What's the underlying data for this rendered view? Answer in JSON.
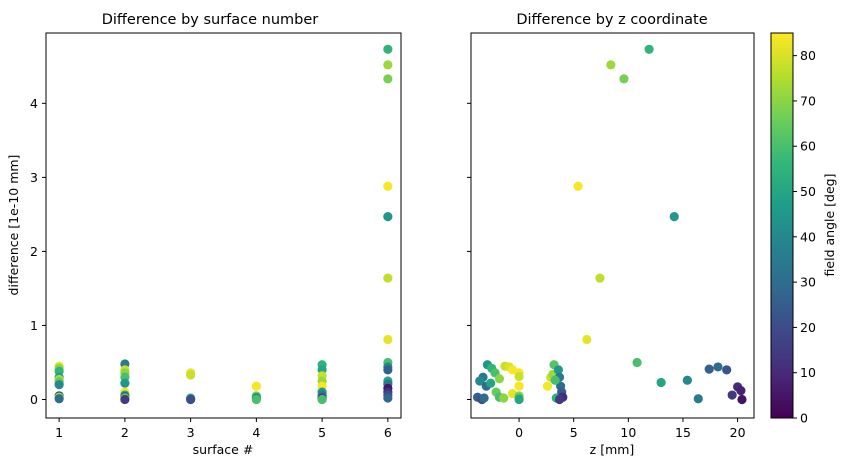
{
  "colors": {
    "viridis_stops": [
      "#440154",
      "#482878",
      "#3e4989",
      "#31688e",
      "#26828e",
      "#1f9e89",
      "#35b779",
      "#6ece58",
      "#b5de2b",
      "#fde725"
    ],
    "axis": "#000000",
    "background": "#ffffff"
  },
  "chart_data": [
    {
      "type": "scatter",
      "title": "Difference by surface number",
      "xlabel": "surface #",
      "ylabel": "difference [1e-10 mm]",
      "xlim": [
        0.8,
        6.2
      ],
      "ylim": [
        -0.25,
        4.95
      ],
      "xticks": [
        1,
        2,
        3,
        4,
        5,
        6
      ],
      "yticks": [
        0,
        1,
        2,
        3,
        4
      ],
      "grid": false,
      "color_by": "field angle [deg]",
      "points": [
        {
          "x": 1,
          "y": 0.45,
          "c": 82
        },
        {
          "x": 1,
          "y": 0.42,
          "c": 70
        },
        {
          "x": 1,
          "y": 0.38,
          "c": 55
        },
        {
          "x": 1,
          "y": 0.3,
          "c": 48
        },
        {
          "x": 1,
          "y": 0.27,
          "c": 75
        },
        {
          "x": 1,
          "y": 0.24,
          "c": 65
        },
        {
          "x": 1,
          "y": 0.2,
          "c": 40
        },
        {
          "x": 1,
          "y": 0.05,
          "c": 20
        },
        {
          "x": 1,
          "y": 0.03,
          "c": 72
        },
        {
          "x": 1,
          "y": 0.01,
          "c": 30
        },
        {
          "x": 2,
          "y": 0.48,
          "c": 35
        },
        {
          "x": 2,
          "y": 0.4,
          "c": 78
        },
        {
          "x": 2,
          "y": 0.36,
          "c": 70
        },
        {
          "x": 2,
          "y": 0.3,
          "c": 60
        },
        {
          "x": 2,
          "y": 0.22,
          "c": 45
        },
        {
          "x": 2,
          "y": 0.1,
          "c": 84
        },
        {
          "x": 2,
          "y": 0.06,
          "c": 50
        },
        {
          "x": 2,
          "y": 0.04,
          "c": 25
        },
        {
          "x": 2,
          "y": 0.02,
          "c": 65
        },
        {
          "x": 2,
          "y": 0.0,
          "c": 15
        },
        {
          "x": 3,
          "y": 0.36,
          "c": 82
        },
        {
          "x": 3,
          "y": 0.33,
          "c": 78
        },
        {
          "x": 3,
          "y": 0.02,
          "c": 60
        },
        {
          "x": 3,
          "y": 0.01,
          "c": 40
        },
        {
          "x": 3,
          "y": 0.0,
          "c": 20
        },
        {
          "x": 4,
          "y": 0.18,
          "c": 84
        },
        {
          "x": 4,
          "y": 0.05,
          "c": 70
        },
        {
          "x": 4,
          "y": 0.03,
          "c": 50
        },
        {
          "x": 4,
          "y": 0.01,
          "c": 30
        },
        {
          "x": 4,
          "y": 0.0,
          "c": 60
        },
        {
          "x": 5,
          "y": 0.47,
          "c": 55
        },
        {
          "x": 5,
          "y": 0.4,
          "c": 50
        },
        {
          "x": 5,
          "y": 0.32,
          "c": 78
        },
        {
          "x": 5,
          "y": 0.25,
          "c": 72
        },
        {
          "x": 5,
          "y": 0.18,
          "c": 84
        },
        {
          "x": 5,
          "y": 0.1,
          "c": 45
        },
        {
          "x": 5,
          "y": 0.06,
          "c": 35
        },
        {
          "x": 5,
          "y": 0.03,
          "c": 25
        },
        {
          "x": 5,
          "y": 0.01,
          "c": 15
        },
        {
          "x": 5,
          "y": 0.0,
          "c": 60
        },
        {
          "x": 6,
          "y": 4.73,
          "c": 55
        },
        {
          "x": 6,
          "y": 4.52,
          "c": 72
        },
        {
          "x": 6,
          "y": 4.33,
          "c": 67
        },
        {
          "x": 6,
          "y": 2.88,
          "c": 84
        },
        {
          "x": 6,
          "y": 2.47,
          "c": 45
        },
        {
          "x": 6,
          "y": 1.64,
          "c": 77
        },
        {
          "x": 6,
          "y": 0.81,
          "c": 82
        },
        {
          "x": 6,
          "y": 0.5,
          "c": 60
        },
        {
          "x": 6,
          "y": 0.44,
          "c": 40
        },
        {
          "x": 6,
          "y": 0.4,
          "c": 26
        },
        {
          "x": 6,
          "y": 0.25,
          "c": 50
        },
        {
          "x": 6,
          "y": 0.21,
          "c": 35
        },
        {
          "x": 6,
          "y": 0.15,
          "c": 5
        },
        {
          "x": 6,
          "y": 0.1,
          "c": 12
        },
        {
          "x": 6,
          "y": 0.06,
          "c": 20
        },
        {
          "x": 6,
          "y": 0.02,
          "c": 28
        }
      ]
    },
    {
      "type": "scatter",
      "title": "Difference by z coordinate",
      "xlabel": "z [mm]",
      "ylabel": "",
      "xlim": [
        -4.4,
        21.5
      ],
      "ylim": [
        -0.25,
        4.95
      ],
      "xticks": [
        0,
        5,
        10,
        15,
        20
      ],
      "yticks": [
        0,
        1,
        2,
        3,
        4
      ],
      "grid": false,
      "color_by": "field angle [deg]",
      "points": [
        {
          "x": 11.9,
          "y": 4.73,
          "c": 55
        },
        {
          "x": 8.4,
          "y": 4.52,
          "c": 72
        },
        {
          "x": 9.6,
          "y": 4.33,
          "c": 67
        },
        {
          "x": 5.4,
          "y": 2.88,
          "c": 84
        },
        {
          "x": 14.2,
          "y": 2.47,
          "c": 45
        },
        {
          "x": 7.4,
          "y": 1.64,
          "c": 77
        },
        {
          "x": 6.2,
          "y": 0.81,
          "c": 82
        },
        {
          "x": 10.8,
          "y": 0.5,
          "c": 60
        },
        {
          "x": 17.4,
          "y": 0.41,
          "c": 26
        },
        {
          "x": 18.2,
          "y": 0.44,
          "c": 30
        },
        {
          "x": 19.0,
          "y": 0.4,
          "c": 22
        },
        {
          "x": 20.0,
          "y": 0.17,
          "c": 10
        },
        {
          "x": 20.3,
          "y": 0.12,
          "c": 8
        },
        {
          "x": 19.5,
          "y": 0.06,
          "c": 14
        },
        {
          "x": 20.4,
          "y": 0.0,
          "c": 4
        },
        {
          "x": 16.4,
          "y": 0.01,
          "c": 35
        },
        {
          "x": 13.0,
          "y": 0.23,
          "c": 50
        },
        {
          "x": 15.4,
          "y": 0.26,
          "c": 40
        },
        {
          "x": -2.9,
          "y": 0.47,
          "c": 45
        },
        {
          "x": -2.5,
          "y": 0.42,
          "c": 55
        },
        {
          "x": -2.2,
          "y": 0.36,
          "c": 60
        },
        {
          "x": -1.8,
          "y": 0.28,
          "c": 70
        },
        {
          "x": -1.3,
          "y": 0.45,
          "c": 78
        },
        {
          "x": -0.9,
          "y": 0.44,
          "c": 80
        },
        {
          "x": -0.6,
          "y": 0.4,
          "c": 84
        },
        {
          "x": -3.3,
          "y": 0.3,
          "c": 35
        },
        {
          "x": -3.6,
          "y": 0.25,
          "c": 40
        },
        {
          "x": -3.0,
          "y": 0.18,
          "c": 30
        },
        {
          "x": -2.6,
          "y": 0.22,
          "c": 50
        },
        {
          "x": -2.1,
          "y": 0.1,
          "c": 65
        },
        {
          "x": -3.8,
          "y": 0.03,
          "c": 25
        },
        {
          "x": -3.4,
          "y": 0.0,
          "c": 20
        },
        {
          "x": -3.2,
          "y": 0.02,
          "c": 30
        },
        {
          "x": -1.8,
          "y": 0.03,
          "c": 60
        },
        {
          "x": -1.4,
          "y": 0.02,
          "c": 70
        },
        {
          "x": -0.6,
          "y": 0.08,
          "c": 82
        },
        {
          "x": 0.0,
          "y": 0.36,
          "c": 84
        },
        {
          "x": 0.0,
          "y": 0.31,
          "c": 78
        },
        {
          "x": 0.0,
          "y": 0.18,
          "c": 84
        },
        {
          "x": 0.0,
          "y": 0.05,
          "c": 70
        },
        {
          "x": 0.0,
          "y": 0.02,
          "c": 60
        },
        {
          "x": 0.0,
          "y": 0.0,
          "c": 50
        },
        {
          "x": 2.6,
          "y": 0.18,
          "c": 84
        },
        {
          "x": 2.9,
          "y": 0.3,
          "c": 78
        },
        {
          "x": 3.1,
          "y": 0.34,
          "c": 72
        },
        {
          "x": 3.2,
          "y": 0.47,
          "c": 62
        },
        {
          "x": 3.4,
          "y": 0.02,
          "c": 55
        },
        {
          "x": 3.6,
          "y": 0.4,
          "c": 45
        },
        {
          "x": 3.7,
          "y": 0.3,
          "c": 35
        },
        {
          "x": 3.8,
          "y": 0.18,
          "c": 30
        },
        {
          "x": 3.9,
          "y": 0.1,
          "c": 25
        },
        {
          "x": 4.0,
          "y": 0.03,
          "c": 10
        },
        {
          "x": 3.7,
          "y": 0.0,
          "c": 15
        },
        {
          "x": 3.3,
          "y": 0.26,
          "c": 60
        }
      ]
    },
    {
      "type": "colorbar",
      "label": "field angle [deg]",
      "range": [
        0,
        85
      ],
      "ticks": [
        0,
        10,
        20,
        30,
        40,
        50,
        60,
        70,
        80
      ]
    }
  ]
}
